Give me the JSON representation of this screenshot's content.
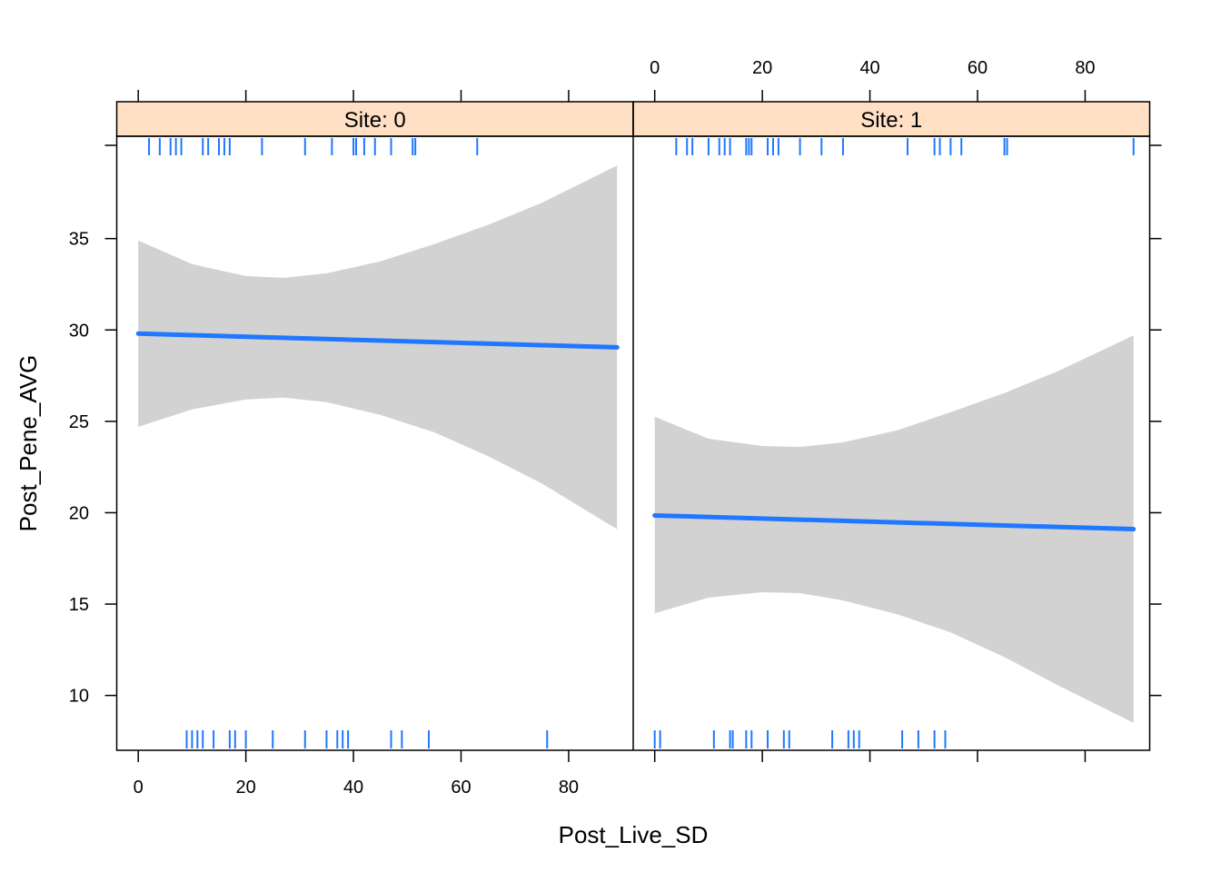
{
  "chart_data": {
    "type": "line",
    "xlabel": "Post_Live_SD",
    "ylabel": "Post_Pene_AVG",
    "xlim": [
      -4,
      92
    ],
    "ylim": [
      7,
      40.6
    ],
    "x_ticks": [
      0,
      20,
      40,
      60,
      80
    ],
    "y_ticks": [
      10,
      15,
      20,
      25,
      30,
      35
    ],
    "colors": {
      "line": "#1f78ff",
      "band": "#d2d2d2",
      "strip": "#ffe0c4",
      "frame": "#000000"
    },
    "panels": [
      {
        "strip_label": "Site: 0",
        "fit": {
          "x": [
            0,
            89
          ],
          "y": [
            29.8,
            29.05
          ]
        },
        "band": {
          "x": [
            0,
            10,
            20,
            27,
            35,
            45,
            55,
            65,
            75,
            89
          ],
          "upper": [
            34.9,
            33.6,
            32.95,
            32.85,
            33.1,
            33.75,
            34.7,
            35.75,
            36.95,
            39.0
          ],
          "lower": [
            24.7,
            25.65,
            26.2,
            26.3,
            26.05,
            25.35,
            24.4,
            23.1,
            21.6,
            19.1
          ]
        },
        "rug_top": [
          2,
          4,
          6,
          7,
          8,
          12,
          13,
          15,
          16,
          17,
          23,
          31,
          36,
          40,
          40.5,
          42,
          44,
          47,
          51,
          51.5,
          63
        ],
        "rug_bottom": [
          9,
          10,
          11,
          12,
          14,
          17,
          18,
          20,
          25,
          31,
          35,
          37,
          38,
          39,
          47,
          49,
          54,
          76
        ]
      },
      {
        "strip_label": "Site: 1",
        "fit": {
          "x": [
            0,
            89
          ],
          "y": [
            19.85,
            19.1
          ]
        },
        "band": {
          "x": [
            0,
            10,
            20,
            27,
            35,
            45,
            55,
            65,
            75,
            89
          ],
          "upper": [
            25.25,
            24.05,
            23.65,
            23.6,
            23.85,
            24.5,
            25.5,
            26.55,
            27.75,
            29.7
          ],
          "lower": [
            14.5,
            15.35,
            15.65,
            15.6,
            15.2,
            14.45,
            13.45,
            12.1,
            10.55,
            8.5
          ]
        },
        "rug_top": [
          4,
          6,
          7,
          10,
          12,
          13,
          14,
          17,
          17.5,
          18,
          21,
          22,
          23,
          27,
          31,
          35,
          47,
          52,
          53,
          55,
          57,
          65,
          65.5,
          89
        ],
        "rug_bottom": [
          0,
          1,
          11,
          14,
          14.5,
          17,
          18,
          21,
          24,
          25,
          33,
          36,
          37,
          38,
          46,
          49,
          52,
          54
        ]
      }
    ]
  }
}
